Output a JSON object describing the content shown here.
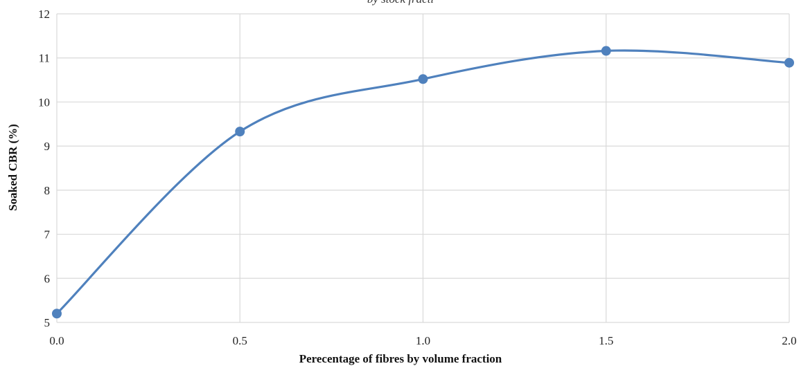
{
  "chart_data": {
    "type": "line",
    "title": "by stock fracti",
    "xlabel": "Perecentage of fibres by volume fraction",
    "ylabel": "Soaked CBR (%)",
    "x_ticks": [
      "0.0",
      "0.5",
      "1.0",
      "1.5",
      "2.0"
    ],
    "y_ticks": [
      "5",
      "6",
      "7",
      "8",
      "9",
      "10",
      "11",
      "12"
    ],
    "xlim": [
      0,
      2
    ],
    "ylim": [
      5,
      12
    ],
    "grid": true,
    "smooth": true,
    "series": [
      {
        "x": [
          0.0,
          0.5,
          1.0,
          1.5,
          2.0
        ],
        "y": [
          5.2,
          9.33,
          10.52,
          11.16,
          10.89
        ],
        "color": "#4f81bd"
      }
    ]
  }
}
